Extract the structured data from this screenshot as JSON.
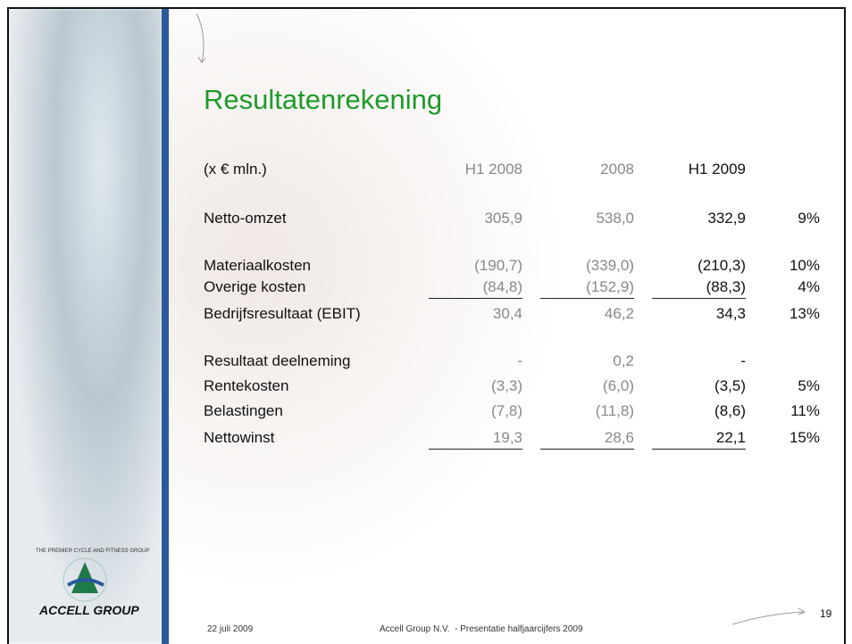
{
  "header": {
    "title": "Resultatenrekening"
  },
  "table": {
    "columns": [
      "(x € mln.)",
      "H1 2008",
      "2008",
      "H1 2009"
    ],
    "rows": [
      {
        "label": "Netto-omzet",
        "values": [
          "305,9",
          "538,0",
          "332,9"
        ],
        "change": "9%"
      },
      {
        "label": "Materiaalkosten",
        "values": [
          "(190,7)",
          "(339,0)",
          "(210,3)"
        ],
        "change": "10%"
      },
      {
        "label": "Overige kosten",
        "values": [
          "(84,8)",
          "(152,9)",
          "(88,3)"
        ],
        "change": "4%"
      },
      {
        "label": "Bedrijfsresultaat (EBIT)",
        "values": [
          "30,4",
          "46,2",
          "34,3"
        ],
        "change": "13%"
      },
      {
        "label": "Resultaat deelneming",
        "values": [
          "-",
          "0,2",
          "-"
        ],
        "change": null
      },
      {
        "label": "Rentekosten",
        "values": [
          "(3,3)",
          "(6,0)",
          "(3,5)"
        ],
        "change": "5%"
      },
      {
        "label": "Belastingen",
        "values": [
          "(7,8)",
          "(11,8)",
          "(8,6)"
        ],
        "change": "11%"
      },
      {
        "label": "Nettowinst",
        "values": [
          "19,3",
          "28,6",
          "22,1"
        ],
        "change": "15%"
      }
    ]
  },
  "logo": {
    "tagline": "THE PREMIER CYCLE AND FITNESS GROUP",
    "name": "ACCELL GROUP"
  },
  "footer": {
    "date": "22 juli 2009",
    "text": "Accell Group N.V.  - Presentatie halfjaarcijfers 2009",
    "page": "19"
  }
}
